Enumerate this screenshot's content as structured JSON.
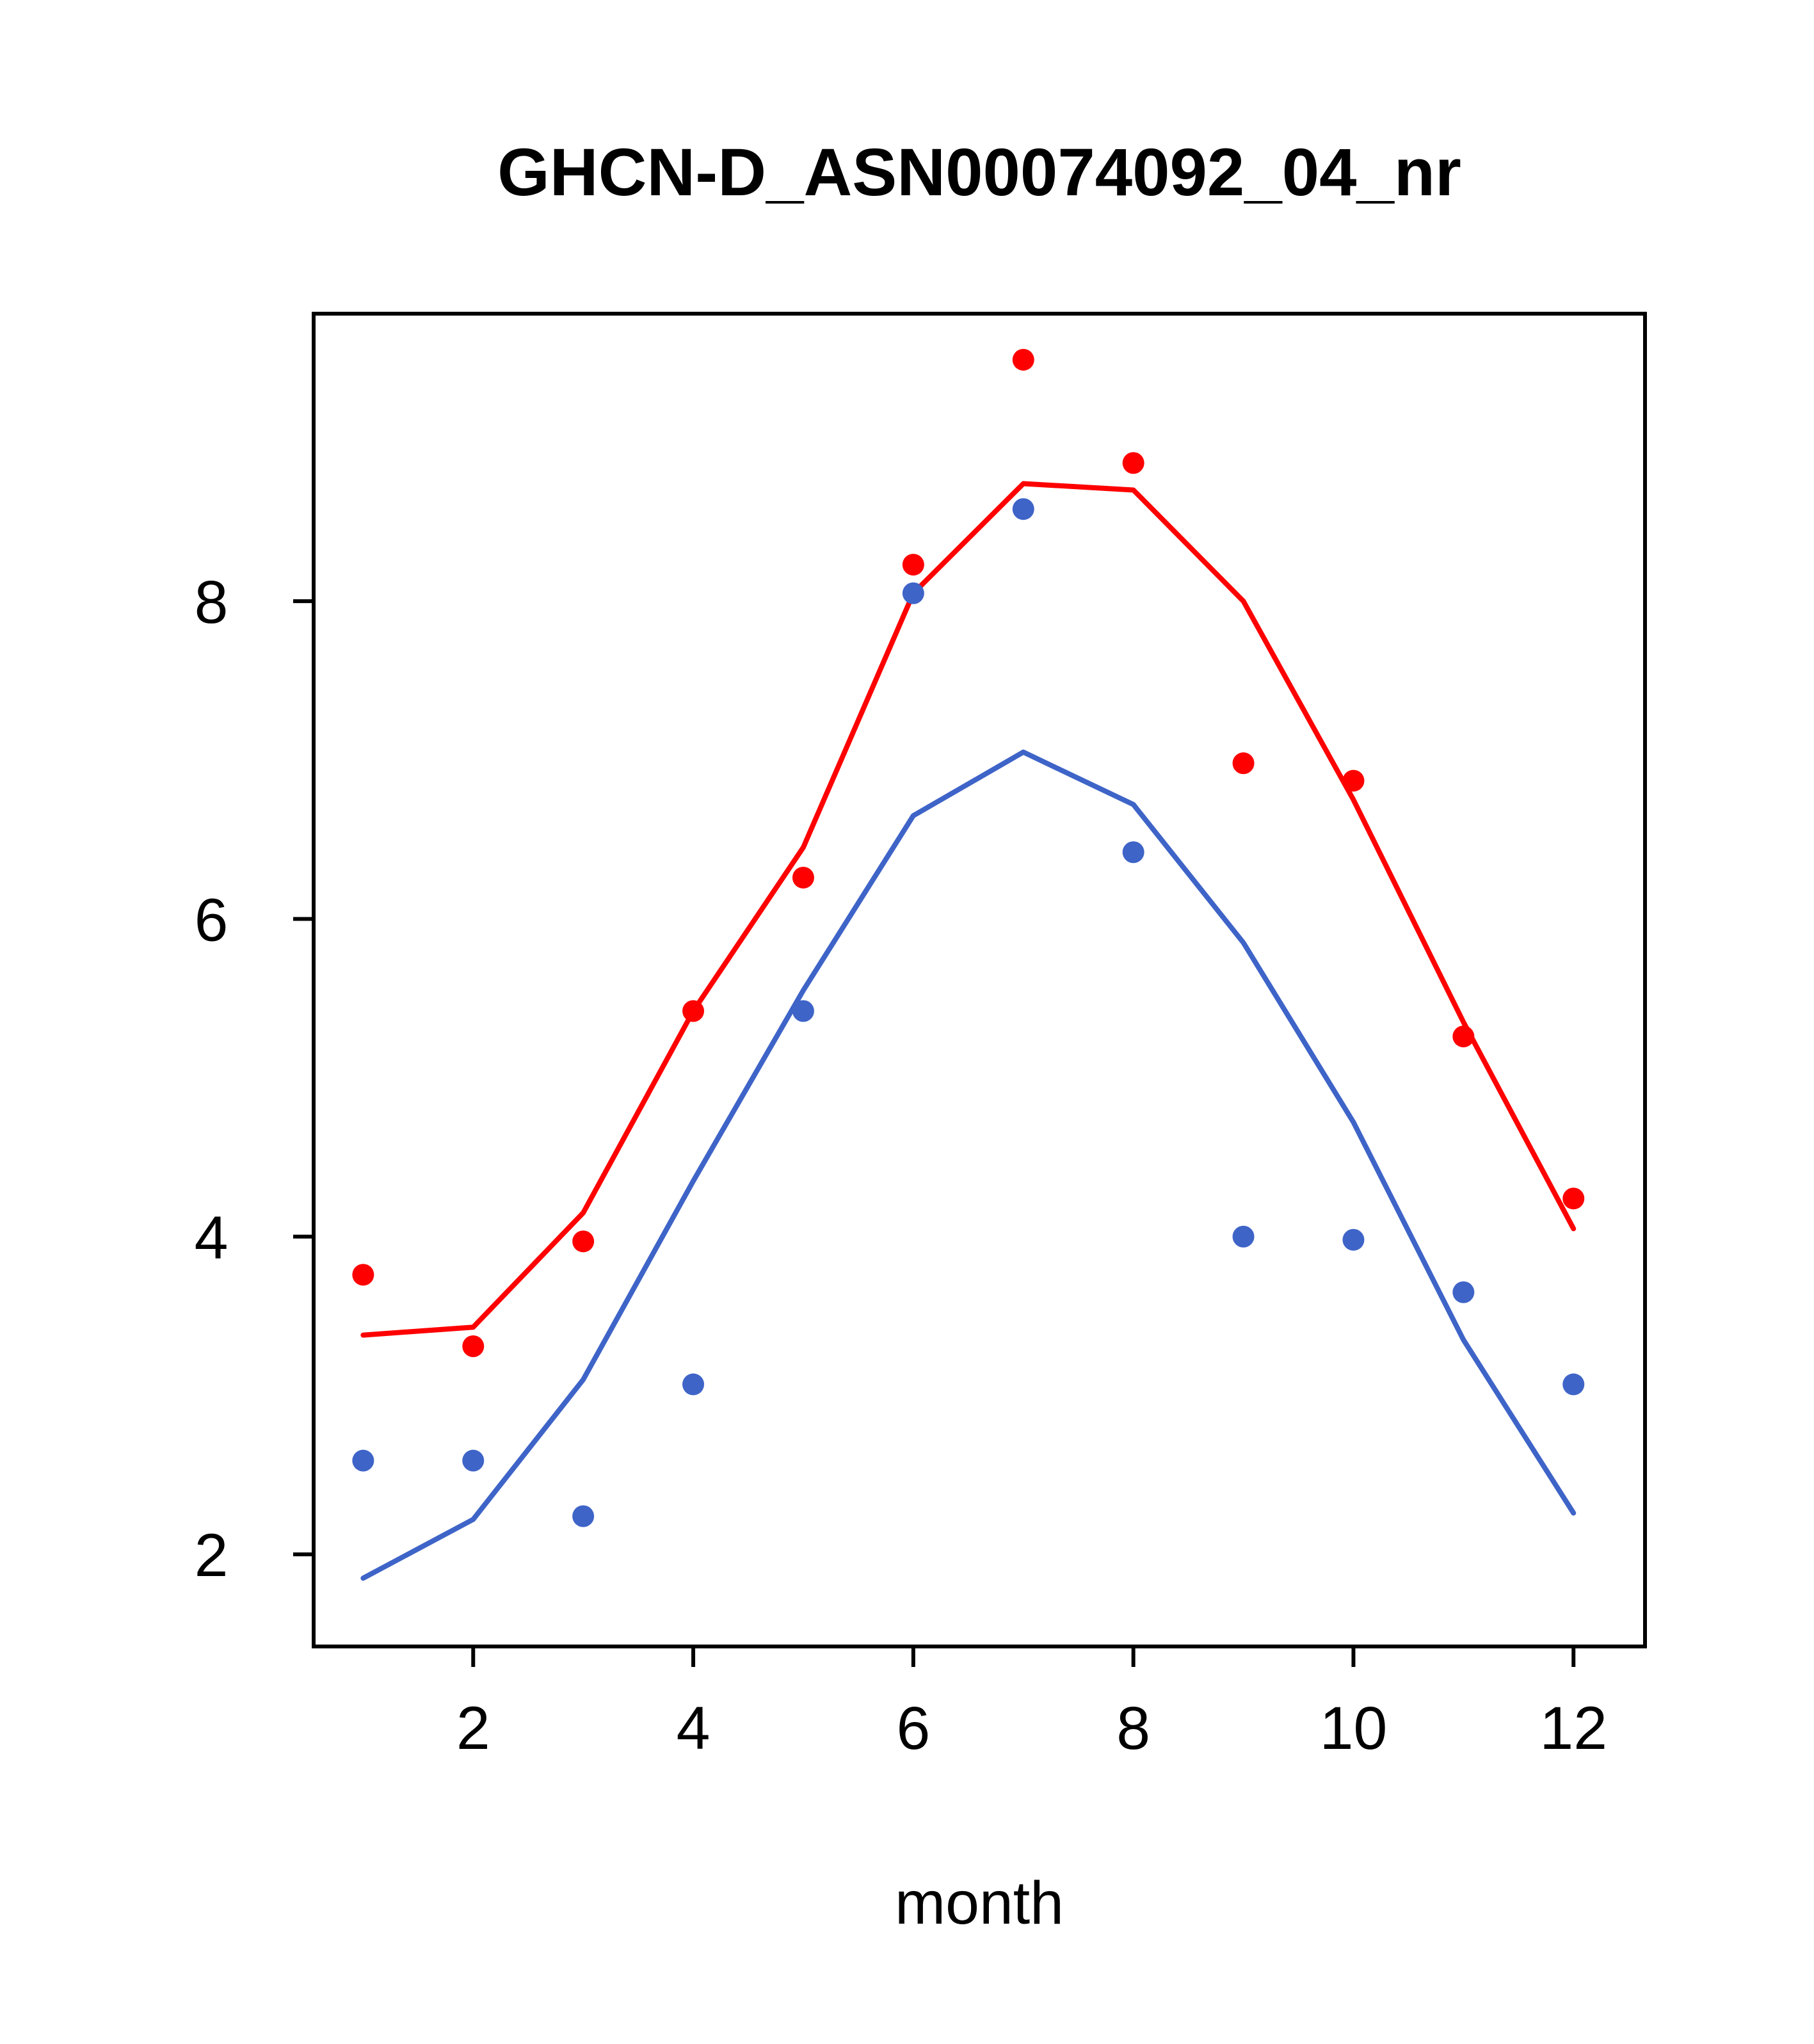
{
  "chart_data": {
    "type": "line",
    "title": "GHCN-D_ASN00074092_04_nr",
    "xlabel": "month",
    "ylabel": "",
    "x": [
      1,
      2,
      3,
      4,
      5,
      6,
      7,
      8,
      9,
      10,
      11,
      12
    ],
    "x_ticks": [
      2,
      4,
      6,
      8,
      10,
      12
    ],
    "y_ticks": [
      2,
      4,
      6,
      8
    ],
    "xlim": [
      0.55,
      12.65
    ],
    "ylim": [
      1.42,
      9.81
    ],
    "grid": false,
    "legend": "none",
    "colors": {
      "red_series": "#ff0000",
      "blue_series": "#3e64c8",
      "axis": "#000000",
      "background": "#ffffff"
    },
    "series": [
      {
        "name": "red-line",
        "render": "line",
        "color": "#ff0000",
        "values": [
          3.38,
          3.43,
          4.15,
          5.42,
          6.45,
          8.05,
          8.74,
          8.7,
          8.0,
          6.75,
          5.35,
          4.05
        ]
      },
      {
        "name": "blue-line",
        "render": "line",
        "color": "#3e64c8",
        "values": [
          1.85,
          2.22,
          3.1,
          4.35,
          5.55,
          6.65,
          7.05,
          6.72,
          5.85,
          4.72,
          3.35,
          2.26
        ]
      },
      {
        "name": "red-points",
        "render": "scatter",
        "color": "#ff0000",
        "values": [
          3.76,
          3.31,
          3.97,
          5.42,
          6.26,
          8.23,
          9.52,
          8.87,
          6.98,
          6.87,
          5.26,
          4.24
        ]
      },
      {
        "name": "blue-points",
        "render": "scatter",
        "color": "#3e64c8",
        "values": [
          2.59,
          2.59,
          2.24,
          3.07,
          5.42,
          8.05,
          8.58,
          6.42,
          4.0,
          3.98,
          3.65,
          3.07
        ]
      }
    ]
  }
}
